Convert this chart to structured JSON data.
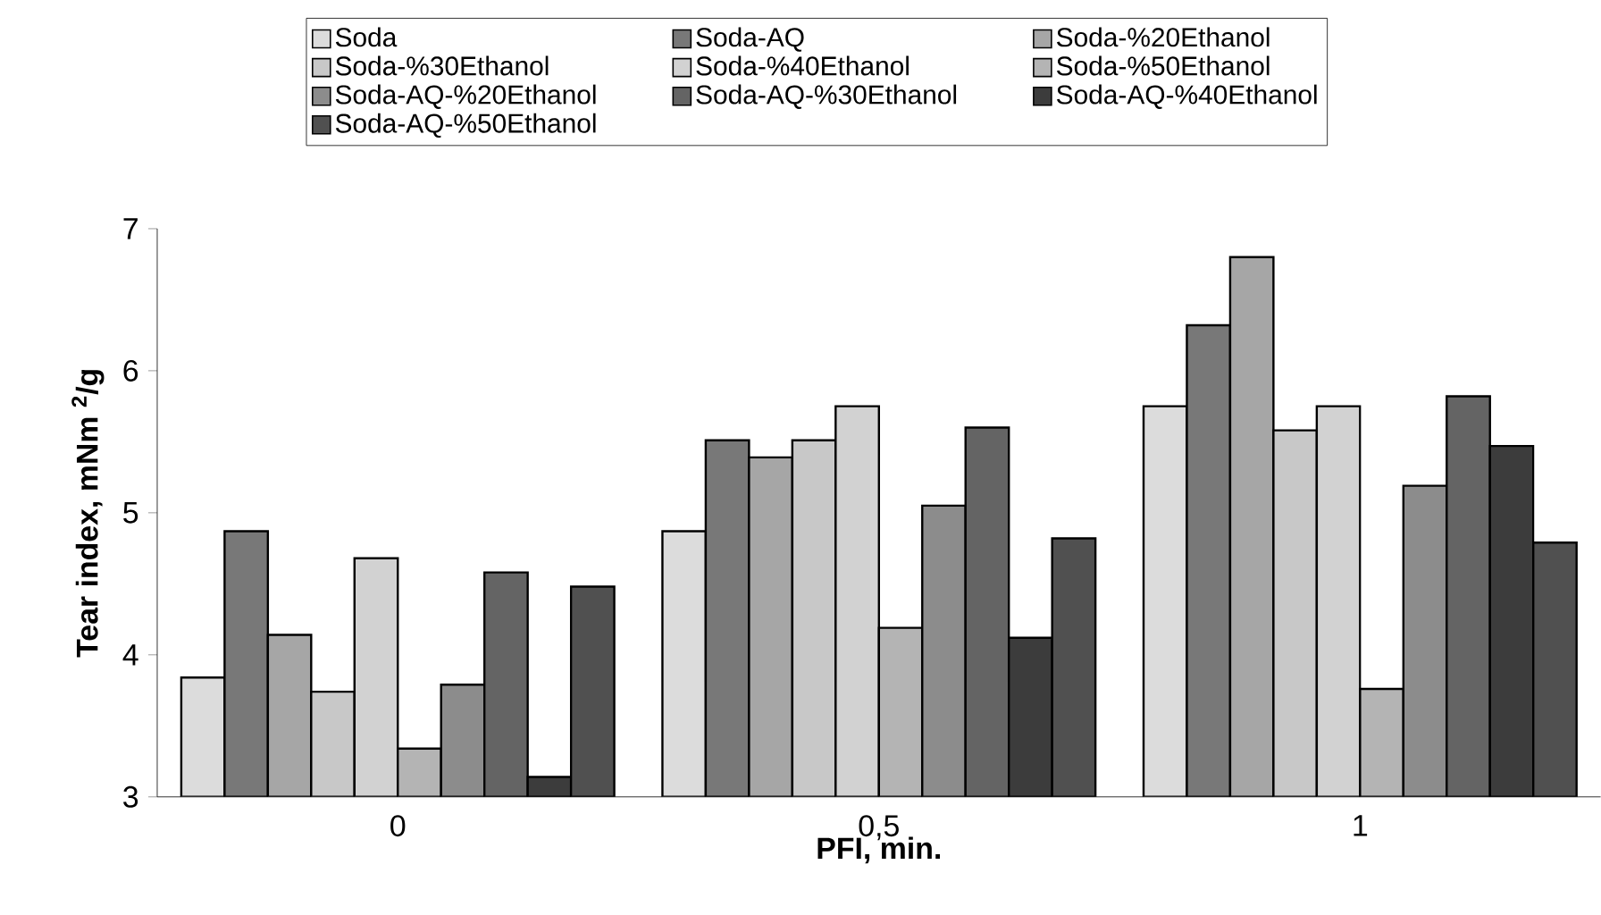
{
  "chart_data": {
    "type": "bar",
    "xlabel": "PFI, min.",
    "ylabel": "Tear index, mNm $^{2}$/g",
    "categories": [
      "0",
      "0,5",
      "1"
    ],
    "ylim": [
      3,
      7
    ],
    "yticks": [
      3,
      4,
      5,
      6,
      7
    ],
    "grid": false,
    "legend": "top",
    "series": [
      {
        "name": "Soda",
        "color": "#dcdcdc",
        "values": [
          3.84,
          4.87,
          5.75
        ]
      },
      {
        "name": "Soda-AQ",
        "color": "#787878",
        "values": [
          4.87,
          5.51,
          6.32
        ]
      },
      {
        "name": "Soda-%20Ethanol",
        "color": "#a6a6a6",
        "values": [
          4.14,
          5.39,
          6.8
        ]
      },
      {
        "name": "Soda-%30Ethanol",
        "color": "#c8c8c8",
        "values": [
          3.74,
          5.51,
          5.58
        ]
      },
      {
        "name": "Soda-%40Ethanol",
        "color": "#d2d2d2",
        "values": [
          4.68,
          5.75,
          5.75
        ]
      },
      {
        "name": "Soda-%50Ethanol",
        "color": "#b4b4b4",
        "values": [
          3.34,
          4.19,
          3.76
        ]
      },
      {
        "name": "Soda-AQ-%20Ethanol",
        "color": "#8c8c8c",
        "values": [
          3.79,
          5.05,
          5.19
        ]
      },
      {
        "name": "Soda-AQ-%30Ethanol",
        "color": "#646464",
        "values": [
          4.58,
          5.6,
          5.82
        ]
      },
      {
        "name": "Soda-AQ-%40Ethanol",
        "color": "#3c3c3c",
        "values": [
          3.14,
          4.12,
          5.47
        ]
      },
      {
        "name": "Soda-AQ-%50Ethanol",
        "color": "#505050",
        "values": [
          4.48,
          4.82,
          4.79
        ]
      }
    ]
  }
}
